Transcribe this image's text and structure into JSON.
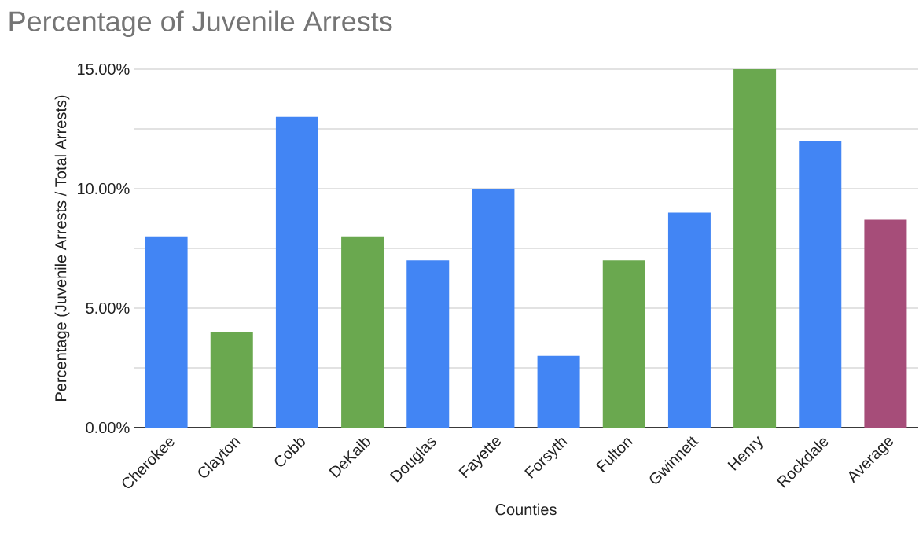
{
  "chart_data": {
    "type": "bar",
    "title": "Percentage of Juvenile Arrests",
    "xlabel": "Counties",
    "ylabel": "Percentage (Juvenile Arrests / Total Arrests)",
    "categories": [
      "Cherokee",
      "Clayton",
      "Cobb",
      "DeKalb",
      "Douglas",
      "Fayette",
      "Forsyth",
      "Fulton",
      "Gwinnett",
      "Henry",
      "Rockdale",
      "Average"
    ],
    "values": [
      8,
      4,
      13,
      8,
      7,
      10,
      3,
      7,
      9,
      15,
      12,
      8.7
    ],
    "colors": [
      "#4285f4",
      "#6aa84f",
      "#4285f4",
      "#6aa84f",
      "#4285f4",
      "#4285f4",
      "#4285f4",
      "#6aa84f",
      "#4285f4",
      "#6aa84f",
      "#4285f4",
      "#a64d79"
    ],
    "ylim": [
      0,
      15
    ],
    "yticks": [
      {
        "value": 0,
        "label": "0.00%"
      },
      {
        "value": 2.5,
        "label": null
      },
      {
        "value": 5,
        "label": "5.00%"
      },
      {
        "value": 7.5,
        "label": null
      },
      {
        "value": 10,
        "label": "10.00%"
      },
      {
        "value": 12.5,
        "label": null
      },
      {
        "value": 15,
        "label": "15.00%"
      }
    ],
    "grid": "y"
  }
}
